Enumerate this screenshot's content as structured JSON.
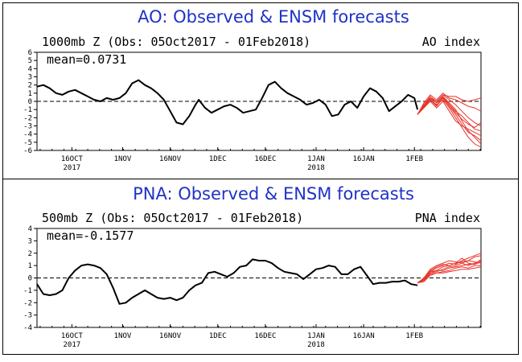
{
  "chart_data": [
    {
      "type": "line",
      "title": "AO: Observed & ENSM forecasts",
      "subtitle": "1000mb Z (Obs: 05Oct2017 - 01Feb2018)",
      "index_label": "AO index",
      "mean_label": "mean=0.0731",
      "ylim": [
        -6,
        6
      ],
      "yticks": [
        6,
        5,
        4,
        3,
        2,
        1,
        0,
        -1,
        -2,
        -3,
        -4,
        -5,
        -6
      ],
      "xlim": [
        0,
        140
      ],
      "xticks": [
        {
          "x": 11,
          "label": "16OCT",
          "year": "2017"
        },
        {
          "x": 27,
          "label": "1NOV",
          "year": ""
        },
        {
          "x": 42,
          "label": "16NOV",
          "year": ""
        },
        {
          "x": 57,
          "label": "1DEC",
          "year": ""
        },
        {
          "x": 72,
          "label": "16DEC",
          "year": ""
        },
        {
          "x": 88,
          "label": "1JAN",
          "year": "2018"
        },
        {
          "x": 103,
          "label": "16JAN",
          "year": ""
        },
        {
          "x": 119,
          "label": "1FEB",
          "year": ""
        }
      ],
      "observed": [
        [
          0,
          1.8
        ],
        [
          2,
          2.0
        ],
        [
          4,
          1.6
        ],
        [
          6,
          1.0
        ],
        [
          8,
          0.8
        ],
        [
          10,
          1.2
        ],
        [
          12,
          1.4
        ],
        [
          14,
          1.0
        ],
        [
          16,
          0.6
        ],
        [
          18,
          0.2
        ],
        [
          20,
          0.0
        ],
        [
          22,
          0.4
        ],
        [
          24,
          0.2
        ],
        [
          26,
          0.4
        ],
        [
          28,
          1.0
        ],
        [
          30,
          2.2
        ],
        [
          32,
          2.6
        ],
        [
          34,
          2.0
        ],
        [
          36,
          1.6
        ],
        [
          38,
          1.0
        ],
        [
          40,
          0.2
        ],
        [
          42,
          -1.2
        ],
        [
          44,
          -2.6
        ],
        [
          46,
          -2.8
        ],
        [
          48,
          -1.8
        ],
        [
          50,
          -0.4
        ],
        [
          51,
          0.2
        ],
        [
          53,
          -0.8
        ],
        [
          55,
          -1.4
        ],
        [
          57,
          -1.0
        ],
        [
          59,
          -0.6
        ],
        [
          61,
          -0.4
        ],
        [
          63,
          -0.8
        ],
        [
          65,
          -1.4
        ],
        [
          67,
          -1.2
        ],
        [
          69,
          -1.0
        ],
        [
          71,
          0.4
        ],
        [
          73,
          2.0
        ],
        [
          75,
          2.4
        ],
        [
          77,
          1.6
        ],
        [
          79,
          1.0
        ],
        [
          81,
          0.6
        ],
        [
          83,
          0.2
        ],
        [
          85,
          -0.4
        ],
        [
          87,
          -0.2
        ],
        [
          89,
          0.2
        ],
        [
          91,
          -0.4
        ],
        [
          93,
          -1.8
        ],
        [
          95,
          -1.6
        ],
        [
          97,
          -0.4
        ],
        [
          99,
          0.0
        ],
        [
          101,
          -0.8
        ],
        [
          103,
          0.6
        ],
        [
          105,
          1.6
        ],
        [
          107,
          1.2
        ],
        [
          109,
          0.4
        ],
        [
          111,
          -1.2
        ],
        [
          113,
          -0.6
        ],
        [
          115,
          0.0
        ],
        [
          117,
          0.8
        ],
        [
          119,
          0.4
        ],
        [
          120,
          -1.0
        ]
      ],
      "ensemble": [
        [
          [
            120,
            -1.6
          ],
          [
            122,
            -0.6
          ],
          [
            124,
            0.4
          ],
          [
            126,
            -0.2
          ],
          [
            128,
            0.6
          ],
          [
            130,
            -0.2
          ],
          [
            132,
            -1.0
          ],
          [
            134,
            -2.4
          ],
          [
            136,
            -3.6
          ],
          [
            138,
            -4.4
          ],
          [
            140,
            -5.2
          ]
        ],
        [
          [
            120,
            -1.6
          ],
          [
            122,
            -0.8
          ],
          [
            124,
            0.2
          ],
          [
            126,
            -0.6
          ],
          [
            128,
            0.4
          ],
          [
            130,
            -0.6
          ],
          [
            132,
            -1.6
          ],
          [
            134,
            -2.8
          ],
          [
            136,
            -3.8
          ],
          [
            138,
            -4.2
          ],
          [
            140,
            -4.8
          ]
        ],
        [
          [
            120,
            -1.6
          ],
          [
            122,
            -0.4
          ],
          [
            124,
            0.6
          ],
          [
            126,
            0.0
          ],
          [
            128,
            0.8
          ],
          [
            130,
            0.2
          ],
          [
            132,
            -0.4
          ],
          [
            134,
            -1.2
          ],
          [
            136,
            -2.0
          ],
          [
            138,
            -2.6
          ],
          [
            140,
            -3.0
          ]
        ],
        [
          [
            120,
            -1.6
          ],
          [
            122,
            -0.6
          ],
          [
            124,
            0.2
          ],
          [
            126,
            -0.4
          ],
          [
            128,
            0.2
          ],
          [
            130,
            -0.8
          ],
          [
            132,
            -2.0
          ],
          [
            134,
            -3.2
          ],
          [
            136,
            -4.4
          ],
          [
            138,
            -5.2
          ],
          [
            140,
            -5.6
          ]
        ],
        [
          [
            120,
            -1.6
          ],
          [
            122,
            -0.2
          ],
          [
            124,
            0.8
          ],
          [
            126,
            0.2
          ],
          [
            128,
            1.0
          ],
          [
            130,
            0.4
          ],
          [
            132,
            0.2
          ],
          [
            134,
            -0.2
          ],
          [
            136,
            -0.6
          ],
          [
            138,
            -0.8
          ],
          [
            140,
            -1.2
          ]
        ],
        [
          [
            120,
            -1.6
          ],
          [
            122,
            -0.8
          ],
          [
            124,
            0.0
          ],
          [
            126,
            -0.8
          ],
          [
            128,
            0.0
          ],
          [
            130,
            -1.2
          ],
          [
            132,
            -2.4
          ],
          [
            134,
            -3.0
          ],
          [
            136,
            -3.4
          ],
          [
            138,
            -3.8
          ],
          [
            140,
            -4.2
          ]
        ],
        [
          [
            120,
            -1.6
          ],
          [
            122,
            -0.6
          ],
          [
            124,
            0.4
          ],
          [
            126,
            -0.2
          ],
          [
            128,
            0.6
          ],
          [
            130,
            -0.4
          ],
          [
            132,
            -1.2
          ],
          [
            134,
            -1.8
          ],
          [
            136,
            -2.6
          ],
          [
            138,
            -3.4
          ],
          [
            140,
            -3.6
          ]
        ],
        [
          [
            120,
            -1.6
          ],
          [
            122,
            -0.4
          ],
          [
            124,
            0.4
          ],
          [
            126,
            0.0
          ],
          [
            128,
            0.8
          ],
          [
            130,
            0.6
          ],
          [
            132,
            0.6
          ],
          [
            134,
            0.2
          ],
          [
            136,
            0.0
          ],
          [
            138,
            0.2
          ],
          [
            140,
            0.4
          ]
        ],
        [
          [
            120,
            -1.6
          ],
          [
            122,
            -0.7
          ],
          [
            124,
            0.3
          ],
          [
            126,
            -0.5
          ],
          [
            128,
            0.5
          ],
          [
            130,
            -0.4
          ],
          [
            132,
            -1.4
          ],
          [
            134,
            -2.2
          ],
          [
            136,
            -2.8
          ],
          [
            138,
            -3.2
          ],
          [
            140,
            -2.6
          ]
        ]
      ]
    },
    {
      "type": "line",
      "title": "PNA: Observed & ENSM forecasts",
      "subtitle": "500mb Z (Obs: 05Oct2017 - 01Feb2018)",
      "index_label": "PNA index",
      "mean_label": "mean=-0.1577",
      "ylim": [
        -4,
        4
      ],
      "yticks": [
        4,
        3,
        2,
        1,
        0,
        -1,
        -2,
        -3,
        -4
      ],
      "xlim": [
        0,
        140
      ],
      "xticks": [
        {
          "x": 11,
          "label": "16OCT",
          "year": "2017"
        },
        {
          "x": 27,
          "label": "1NOV",
          "year": ""
        },
        {
          "x": 42,
          "label": "16NOV",
          "year": ""
        },
        {
          "x": 57,
          "label": "1DEC",
          "year": ""
        },
        {
          "x": 72,
          "label": "16DEC",
          "year": ""
        },
        {
          "x": 88,
          "label": "1JAN",
          "year": "2018"
        },
        {
          "x": 103,
          "label": "16JAN",
          "year": ""
        },
        {
          "x": 119,
          "label": "1FEB",
          "year": ""
        }
      ],
      "observed": [
        [
          0,
          -0.5
        ],
        [
          2,
          -1.3
        ],
        [
          4,
          -1.4
        ],
        [
          6,
          -1.3
        ],
        [
          8,
          -1.0
        ],
        [
          10,
          0.0
        ],
        [
          12,
          0.6
        ],
        [
          14,
          1.0
        ],
        [
          16,
          1.1
        ],
        [
          18,
          1.0
        ],
        [
          20,
          0.8
        ],
        [
          22,
          0.3
        ],
        [
          24,
          -0.8
        ],
        [
          26,
          -2.1
        ],
        [
          28,
          -2.0
        ],
        [
          30,
          -1.6
        ],
        [
          32,
          -1.3
        ],
        [
          34,
          -1.0
        ],
        [
          36,
          -1.3
        ],
        [
          38,
          -1.6
        ],
        [
          40,
          -1.7
        ],
        [
          42,
          -1.6
        ],
        [
          44,
          -1.8
        ],
        [
          46,
          -1.6
        ],
        [
          48,
          -1.0
        ],
        [
          50,
          -0.6
        ],
        [
          52,
          -0.4
        ],
        [
          54,
          0.4
        ],
        [
          56,
          0.5
        ],
        [
          58,
          0.3
        ],
        [
          60,
          0.1
        ],
        [
          62,
          0.4
        ],
        [
          64,
          0.9
        ],
        [
          66,
          1.0
        ],
        [
          68,
          1.5
        ],
        [
          70,
          1.4
        ],
        [
          72,
          1.4
        ],
        [
          74,
          1.2
        ],
        [
          76,
          0.8
        ],
        [
          78,
          0.5
        ],
        [
          80,
          0.4
        ],
        [
          82,
          0.3
        ],
        [
          84,
          -0.1
        ],
        [
          86,
          0.3
        ],
        [
          88,
          0.7
        ],
        [
          90,
          0.8
        ],
        [
          92,
          1.0
        ],
        [
          94,
          0.9
        ],
        [
          96,
          0.3
        ],
        [
          98,
          0.3
        ],
        [
          100,
          0.7
        ],
        [
          102,
          0.9
        ],
        [
          104,
          0.2
        ],
        [
          106,
          -0.5
        ],
        [
          108,
          -0.4
        ],
        [
          110,
          -0.4
        ],
        [
          112,
          -0.3
        ],
        [
          114,
          -0.3
        ],
        [
          116,
          -0.2
        ],
        [
          118,
          -0.5
        ],
        [
          120,
          -0.6
        ]
      ],
      "ensemble": [
        [
          [
            120,
            -0.4
          ],
          [
            122,
            -0.2
          ],
          [
            124,
            0.4
          ],
          [
            126,
            0.5
          ],
          [
            128,
            0.7
          ],
          [
            130,
            0.9
          ],
          [
            132,
            1.0
          ],
          [
            134,
            1.2
          ],
          [
            136,
            1.0
          ],
          [
            138,
            1.2
          ],
          [
            140,
            1.4
          ]
        ],
        [
          [
            120,
            -0.4
          ],
          [
            122,
            -0.1
          ],
          [
            124,
            0.5
          ],
          [
            126,
            0.8
          ],
          [
            128,
            1.0
          ],
          [
            130,
            1.2
          ],
          [
            132,
            1.1
          ],
          [
            134,
            1.4
          ],
          [
            136,
            1.6
          ],
          [
            138,
            1.8
          ],
          [
            140,
            2.0
          ]
        ],
        [
          [
            120,
            -0.4
          ],
          [
            122,
            -0.2
          ],
          [
            124,
            0.3
          ],
          [
            126,
            0.4
          ],
          [
            128,
            0.5
          ],
          [
            130,
            0.6
          ],
          [
            132,
            0.8
          ],
          [
            134,
            0.9
          ],
          [
            136,
            0.8
          ],
          [
            138,
            1.0
          ],
          [
            140,
            1.0
          ]
        ],
        [
          [
            120,
            -0.4
          ],
          [
            122,
            0.0
          ],
          [
            124,
            0.7
          ],
          [
            126,
            1.0
          ],
          [
            128,
            1.2
          ],
          [
            130,
            1.4
          ],
          [
            132,
            1.3
          ],
          [
            134,
            1.2
          ],
          [
            136,
            1.4
          ],
          [
            138,
            1.7
          ],
          [
            140,
            1.8
          ]
        ],
        [
          [
            120,
            -0.4
          ],
          [
            122,
            -0.3
          ],
          [
            124,
            0.2
          ],
          [
            126,
            0.4
          ],
          [
            128,
            0.4
          ],
          [
            130,
            0.5
          ],
          [
            132,
            0.6
          ],
          [
            134,
            0.7
          ],
          [
            136,
            0.7
          ],
          [
            138,
            0.8
          ],
          [
            140,
            0.9
          ]
        ],
        [
          [
            120,
            -0.4
          ],
          [
            122,
            -0.1
          ],
          [
            124,
            0.5
          ],
          [
            126,
            0.6
          ],
          [
            128,
            0.9
          ],
          [
            130,
            1.0
          ],
          [
            132,
            1.2
          ],
          [
            134,
            1.3
          ],
          [
            136,
            1.4
          ],
          [
            138,
            1.3
          ],
          [
            140,
            1.2
          ]
        ],
        [
          [
            120,
            -0.4
          ],
          [
            122,
            -0.2
          ],
          [
            124,
            0.4
          ],
          [
            126,
            0.6
          ],
          [
            128,
            0.6
          ],
          [
            130,
            0.8
          ],
          [
            132,
            0.9
          ],
          [
            134,
            1.0
          ],
          [
            136,
            1.1
          ],
          [
            138,
            1.1
          ],
          [
            140,
            1.3
          ]
        ],
        [
          [
            120,
            -0.4
          ],
          [
            122,
            -0.1
          ],
          [
            124,
            0.6
          ],
          [
            126,
            0.9
          ],
          [
            128,
            1.1
          ],
          [
            130,
            1.0
          ],
          [
            132,
            1.2
          ],
          [
            134,
            1.6
          ],
          [
            136,
            1.2
          ],
          [
            138,
            1.1
          ],
          [
            140,
            1.5
          ]
        ]
      ]
    }
  ]
}
